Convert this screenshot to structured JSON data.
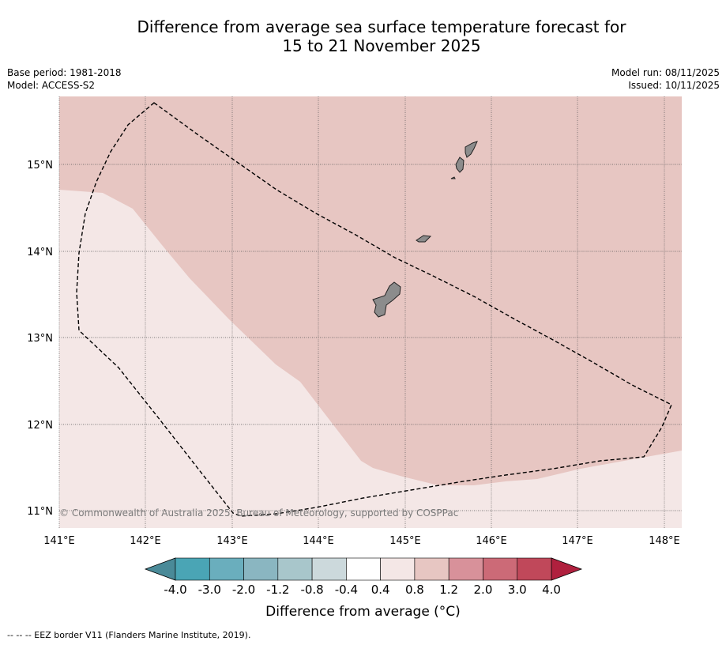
{
  "title_line1": "Difference from average sea surface temperature forecast for",
  "title_line2": "15 to 21 November 2025",
  "meta": {
    "base_period": "Base period: 1981-2018",
    "model": "Model: ACCESS-S2",
    "model_run": "Model run: 08/11/2025",
    "issued": "Issued: 10/11/2025"
  },
  "map": {
    "lon_ticks": [
      "141°E",
      "142°E",
      "143°E",
      "144°E",
      "145°E",
      "146°E",
      "147°E",
      "148°E"
    ],
    "lat_ticks": [
      "15°N",
      "14°N",
      "13°N",
      "12°N",
      "11°N"
    ],
    "copyright": "© Commonwealth of Australia 2025, Bureau of Meteorology, supported by COSPPac",
    "colors": {
      "warm_0_4_0_8": "#f4e7e6",
      "warm_0_8_1_2": "#e7c6c2",
      "land": "#8c8c8c"
    }
  },
  "colorbar": {
    "label": "Difference from average (°C)",
    "ticks": [
      "-4.0",
      "-3.0",
      "-2.0",
      "-1.2",
      "-0.8",
      "-0.4",
      "0.4",
      "0.8",
      "1.2",
      "2.0",
      "3.0",
      "4.0"
    ],
    "colors": [
      "#4a8a98",
      "#4aa5b5",
      "#6aaebd",
      "#8ab6c1",
      "#a8c6cb",
      "#ccd9dc",
      "#ffffff",
      "#f4e7e6",
      "#e7c6c2",
      "#d8919a",
      "#cc6a77",
      "#c0485a",
      "#b0203e"
    ]
  },
  "footer": "--  --  -- EEZ border V11 (Flanders Marine Institute, 2019)."
}
